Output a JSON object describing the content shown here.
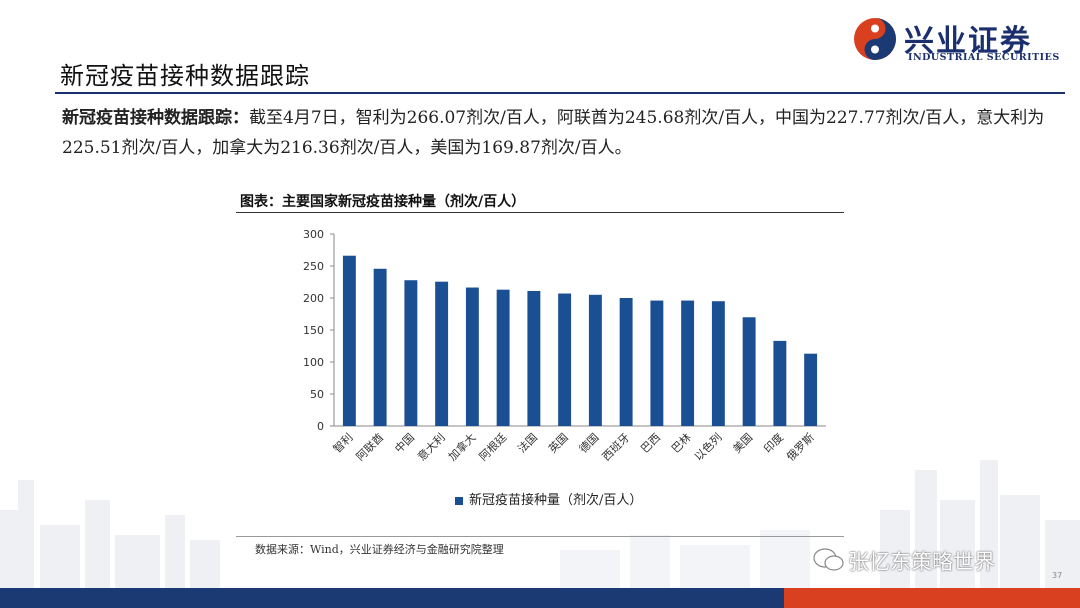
{
  "header": {
    "page_title": "新冠疫苗接种数据跟踪",
    "logo_cn": "兴业证券",
    "logo_en": "INDUSTRIAL SECURITIES"
  },
  "summary": {
    "lead": "新冠疫苗接种数据跟踪：",
    "body": "截至4月7日，智利为266.07剂次/百人，阿联酋为245.68剂次/百人，中国为227.77剂次/百人，意大利为225.51剂次/百人，加拿大为216.36剂次/百人，美国为169.87剂次/百人。"
  },
  "figure": {
    "title": "图表：主要国家新冠疫苗接种量（剂次/百人）",
    "source": "数据来源：Wind，兴业证券经济与金融研究院整理"
  },
  "chart_data": {
    "type": "bar",
    "categories": [
      "智利",
      "阿联酋",
      "中国",
      "意大利",
      "加拿大",
      "阿根廷",
      "法国",
      "英国",
      "德国",
      "西班牙",
      "巴西",
      "巴林",
      "以色列",
      "美国",
      "印度",
      "俄罗斯"
    ],
    "series": [
      {
        "name": "新冠疫苗接种量（剂次/百人）",
        "values": [
          266.07,
          245.68,
          227.77,
          225.51,
          216.36,
          213,
          211,
          207,
          205,
          200,
          196,
          196,
          195,
          169.87,
          133,
          113
        ]
      }
    ],
    "ylim": [
      0,
      300
    ],
    "yticks": [
      0,
      50,
      100,
      150,
      200,
      250,
      300
    ],
    "bar_color": "#1b4f93",
    "legend_position": "bottom",
    "grid": false
  },
  "footer": {
    "watermark": "张忆东策略世界",
    "page_number": "37"
  },
  "colors": {
    "navy": "#1b3a73",
    "red": "#d9401f",
    "bar": "#1b4f93"
  }
}
